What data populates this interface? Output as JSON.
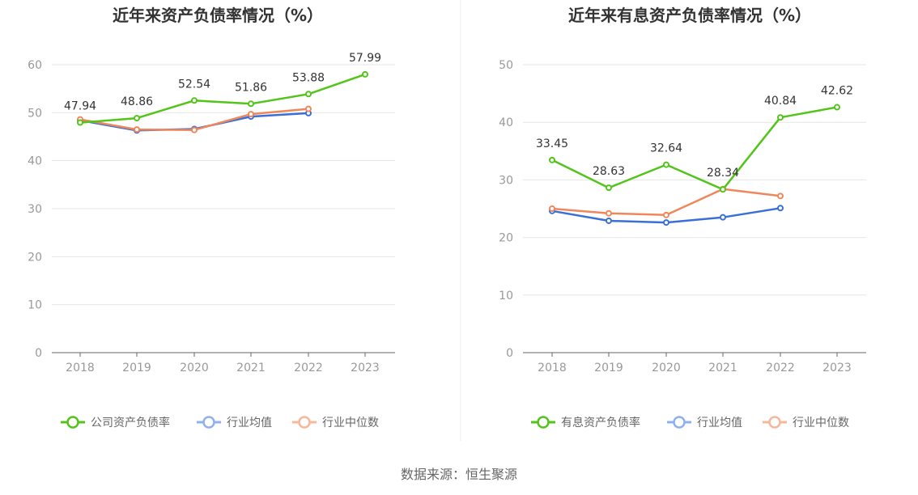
{
  "source": "数据来源：恒生聚源",
  "chart_data": [
    {
      "type": "line",
      "title": "近年来资产负债率情况（%）",
      "categories": [
        "2018",
        "2019",
        "2020",
        "2021",
        "2022",
        "2023"
      ],
      "ylim": [
        0,
        60
      ],
      "yticks": [
        0,
        10,
        20,
        30,
        40,
        50,
        60
      ],
      "grid": true,
      "legend_position": "bottom",
      "series": [
        {
          "name": "公司资产负债率",
          "color": "#52c41a",
          "values": [
            47.94,
            48.86,
            52.54,
            51.86,
            53.88,
            57.99
          ],
          "labels": [
            "47.94",
            "48.86",
            "52.54",
            "51.86",
            "53.88",
            "57.99"
          ]
        },
        {
          "name": "行业均值",
          "color": "#3a6fd8",
          "values": [
            48.4,
            46.3,
            46.6,
            49.2,
            49.9,
            null
          ]
        },
        {
          "name": "行业中位数",
          "color": "#f0875a",
          "values": [
            48.6,
            46.5,
            46.4,
            49.7,
            50.8,
            null
          ]
        }
      ]
    },
    {
      "type": "line",
      "title": "近年来有息资产负债率情况（%）",
      "categories": [
        "2018",
        "2019",
        "2020",
        "2021",
        "2022",
        "2023"
      ],
      "ylim": [
        0,
        50
      ],
      "yticks": [
        0,
        10,
        20,
        30,
        40,
        50
      ],
      "grid": true,
      "legend_position": "bottom",
      "series": [
        {
          "name": "有息资产负债率",
          "color": "#52c41a",
          "values": [
            33.45,
            28.63,
            32.64,
            28.34,
            40.84,
            42.62
          ],
          "labels": [
            "33.45",
            "28.63",
            "32.64",
            "28.34",
            "40.84",
            "42.62"
          ]
        },
        {
          "name": "行业均值",
          "color": "#3a6fd8",
          "values": [
            24.6,
            22.9,
            22.6,
            23.5,
            25.1,
            null
          ]
        },
        {
          "name": "行业中位数",
          "color": "#f0875a",
          "values": [
            25.0,
            24.2,
            23.9,
            28.4,
            27.2,
            null
          ]
        }
      ]
    }
  ]
}
